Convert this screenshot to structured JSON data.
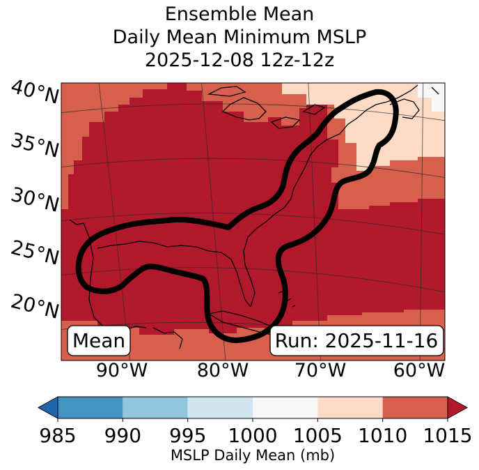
{
  "title": {
    "line1": "Ensemble Mean",
    "line2": "Daily Mean Minimum MSLP",
    "line3": "2025-12-08 12z-12z"
  },
  "map": {
    "lat_labels": [
      "40°N",
      "35°N",
      "30°N",
      "25°N",
      "20°N"
    ],
    "lon_labels": [
      "90°W",
      "80°W",
      "70°W",
      "60°W"
    ],
    "mean_label": "Mean",
    "run_label": "Run: 2025-11-16",
    "field_colors": {
      "lt_1005": "#f7f7f7",
      "1005_1010": "#fddbc7",
      "1010_1015": "#d6604d",
      "gt_1015": "#b2182b"
    },
    "contour_description": "thick black ensemble contour"
  },
  "chart_data": {
    "type": "heatmap",
    "title": "Ensemble Mean Daily Mean Minimum MSLP 2025-12-08 12z-12z",
    "lat_range": [
      17,
      41
    ],
    "lon_range": [
      -96,
      -59
    ],
    "colorbar": {
      "ticks": [
        "985",
        "990",
        "995",
        "1000",
        "1005",
        "1010",
        "1015"
      ],
      "label": "MSLP Daily Mean (mb)",
      "bins": [
        {
          "range": [
            985,
            990
          ],
          "color": "#4393c3"
        },
        {
          "range": [
            990,
            995
          ],
          "color": "#92c5de"
        },
        {
          "range": [
            995,
            1000
          ],
          "color": "#d1e5f0"
        },
        {
          "range": [
            1000,
            1005
          ],
          "color": "#f7f7f7"
        },
        {
          "range": [
            1005,
            1010
          ],
          "color": "#fddbc7"
        },
        {
          "range": [
            1010,
            1015
          ],
          "color": "#d6604d"
        }
      ],
      "under_color": "#2166ac",
      "over_color": "#b2182b",
      "extend": "both"
    }
  }
}
